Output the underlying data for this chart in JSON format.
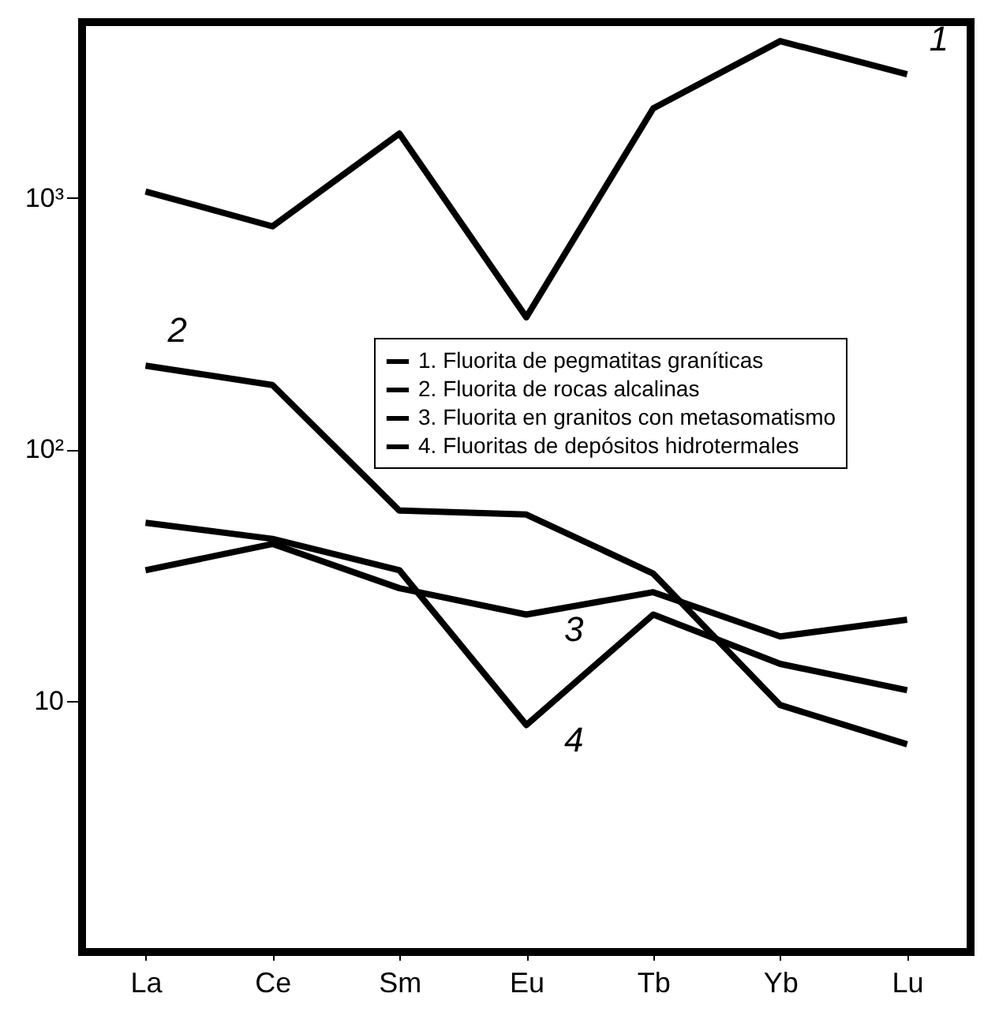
{
  "chart_data": {
    "type": "line",
    "log": true,
    "grid": false,
    "legend": "right",
    "marker": "none",
    "categories": [
      "La",
      "Ce",
      "Sm",
      "Eu",
      "Tb",
      "Yb",
      "Lu"
    ],
    "ylim": [
      1,
      5000
    ],
    "yticks": [
      {
        "value": 10,
        "label": "10"
      },
      {
        "value": 100,
        "label": "10²"
      },
      {
        "value": 1000,
        "label": "10³"
      }
    ],
    "series": [
      {
        "name": "1. Fluorita de pegmatitas graníticas",
        "color": "#000000",
        "values": [
          1060,
          770,
          1800,
          335,
          2270,
          4200,
          3100
        ]
      },
      {
        "name": "2. Fluorita de rocas alcalinas",
        "color": "#000000",
        "values": [
          215,
          180,
          57,
          55,
          32,
          9.6,
          6.7
        ]
      },
      {
        "name": "3. Fluorita en granitos con metasomatismo",
        "color": "#000000",
        "values": [
          33,
          42,
          28,
          22,
          27,
          18,
          21
        ]
      },
      {
        "name": "4. Fluoritas de depósitos hidrotermales",
        "color": "#000000",
        "values": [
          51,
          44,
          33,
          8,
          22,
          14,
          11
        ]
      }
    ],
    "annotations": [
      {
        "text": "1",
        "x": "Lu",
        "y": 3100
      },
      {
        "text": "2",
        "x": "La",
        "y": 215
      },
      {
        "text": "3",
        "x": "Eu",
        "y": 22
      },
      {
        "text": "4",
        "x": "Eu",
        "y": 8
      }
    ]
  }
}
